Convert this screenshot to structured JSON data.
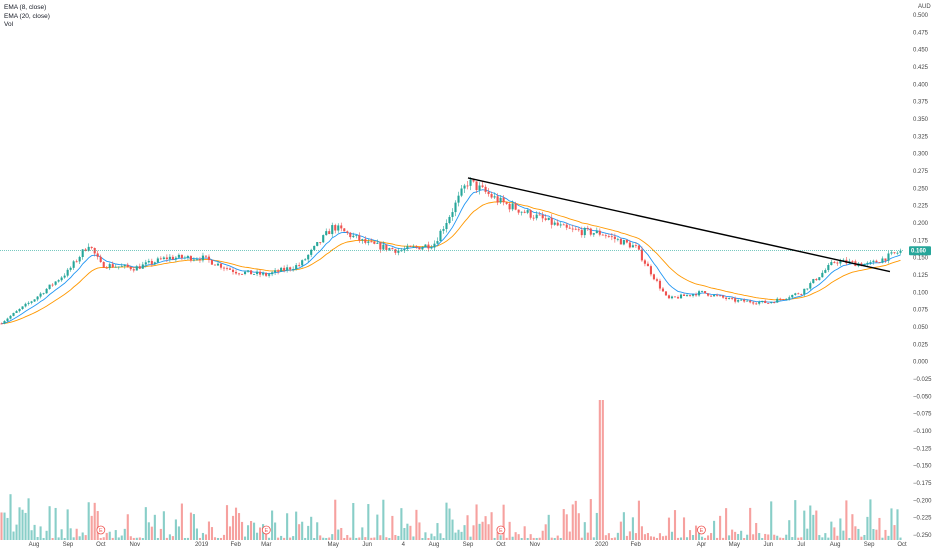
{
  "legend": {
    "ema_short": "EMA (8, close)",
    "ema_long": "EMA (20, close)",
    "volume": "Vol"
  },
  "chart_data": {
    "type": "candlestick",
    "currency": "AUD",
    "y_ticks": [
      0.5,
      0.475,
      0.45,
      0.425,
      0.4,
      0.375,
      0.35,
      0.325,
      0.3,
      0.275,
      0.25,
      0.225,
      0.2,
      0.175,
      0.15,
      0.125,
      0.1,
      0.075,
      0.05,
      0.025,
      0.0,
      -0.025,
      -0.05,
      -0.075,
      -0.1,
      -0.125,
      -0.15,
      -0.175,
      -0.2,
      -0.225,
      -0.25
    ],
    "y_tick_labels": [
      "0.500",
      "0.475",
      "0.450",
      "0.425",
      "0.400",
      "0.375",
      "0.350",
      "0.325",
      "0.300",
      "0.275",
      "0.250",
      "0.225",
      "0.200",
      "0.175",
      "0.150",
      "0.125",
      "0.100",
      "0.075",
      "0.050",
      "0.025",
      "0.000",
      "−0.025",
      "−0.050",
      "−0.075",
      "−0.100",
      "−0.125",
      "−0.150",
      "−0.175",
      "−0.200",
      "−0.225",
      "−0.250"
    ],
    "x_ticks": [
      "Aug",
      "Sep",
      "Oct",
      "Nov",
      "2019",
      "Feb",
      "Mar",
      "May",
      "Jun",
      "4",
      "Aug",
      "Sep",
      "Oct",
      "Nov",
      "2020",
      "Feb",
      "Apr",
      "May",
      "Jun",
      "Jul",
      "Aug",
      "Sep",
      "Oct"
    ],
    "x_tick_dates": [
      "2018-08",
      "2018-09",
      "2018-10",
      "2018-11",
      "2019-01",
      "2019-02",
      "2019-03",
      "2019-05",
      "2019-06",
      "2019-07-04",
      "2019-08",
      "2019-09",
      "2019-10",
      "2019-11",
      "2020-01",
      "2020-02",
      "2020-04",
      "2020-05",
      "2020-06",
      "2020-07",
      "2020-08",
      "2020-09",
      "2020-10"
    ],
    "last_price": 0.16,
    "last_price_label": "0.160",
    "price_path": [
      {
        "date": "2018-07",
        "close": 0.055
      },
      {
        "date": "2018-08",
        "close": 0.09
      },
      {
        "date": "2018-09",
        "close": 0.13
      },
      {
        "date": "2018-09-20",
        "close": 0.17
      },
      {
        "date": "2018-10",
        "close": 0.14
      },
      {
        "date": "2018-11",
        "close": 0.135
      },
      {
        "date": "2018-12",
        "close": 0.15
      },
      {
        "date": "2019-01",
        "close": 0.15
      },
      {
        "date": "2019-02",
        "close": 0.13
      },
      {
        "date": "2019-03",
        "close": 0.125
      },
      {
        "date": "2019-04",
        "close": 0.14
      },
      {
        "date": "2019-05",
        "close": 0.195
      },
      {
        "date": "2019-06",
        "close": 0.17
      },
      {
        "date": "2019-07",
        "close": 0.16
      },
      {
        "date": "2019-08",
        "close": 0.17
      },
      {
        "date": "2019-09",
        "close": 0.26
      },
      {
        "date": "2019-10",
        "close": 0.23
      },
      {
        "date": "2019-11",
        "close": 0.21
      },
      {
        "date": "2019-12",
        "close": 0.19
      },
      {
        "date": "2020-01",
        "close": 0.185
      },
      {
        "date": "2020-02",
        "close": 0.165
      },
      {
        "date": "2020-03",
        "close": 0.09
      },
      {
        "date": "2020-04",
        "close": 0.1
      },
      {
        "date": "2020-05",
        "close": 0.088
      },
      {
        "date": "2020-06",
        "close": 0.085
      },
      {
        "date": "2020-07",
        "close": 0.1
      },
      {
        "date": "2020-08",
        "close": 0.145
      },
      {
        "date": "2020-09",
        "close": 0.14
      },
      {
        "date": "2020-10",
        "close": 0.16
      }
    ],
    "trendline": {
      "start": {
        "date": "2019-09",
        "value": 0.265
      },
      "end": {
        "date": "2020-09-20",
        "value": 0.13
      }
    },
    "earnings_markers": [
      {
        "date": "2018-10",
        "label": "E"
      },
      {
        "date": "2019-03",
        "label": "E"
      },
      {
        "date": "2019-10",
        "label": "E"
      },
      {
        "date": "2020-04",
        "label": "E"
      }
    ],
    "volume_spike_date": "2020-01",
    "colors": {
      "up": "#26a69a",
      "down": "#ef5350",
      "ema_short": "#2196f3",
      "ema_long": "#ff9800",
      "trendline": "#000000",
      "price_line": "#26a69a",
      "earnings": "#ef5350"
    },
    "grid": false
  }
}
